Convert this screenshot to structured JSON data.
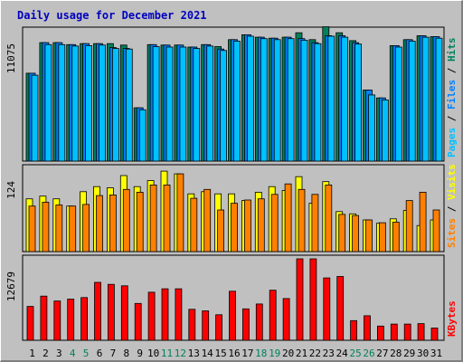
{
  "title": "Daily usage for December 2021",
  "colors": {
    "hits": "#00805c",
    "files": "#0080ff",
    "pages": "#00c0ff",
    "visits": "#ffff00",
    "sites": "#ff8000",
    "kbytes": "#ff0000",
    "weekend_day": "#00805c",
    "weekday": "#000000",
    "title": "#0000c0"
  },
  "chart_data": [
    {
      "type": "bar",
      "y_tick_label": "11075",
      "ylim": [
        0,
        13200
      ],
      "categories": [
        "1",
        "2",
        "3",
        "4",
        "5",
        "6",
        "7",
        "8",
        "9",
        "10",
        "11",
        "12",
        "13",
        "14",
        "15",
        "16",
        "17",
        "18",
        "19",
        "20",
        "21",
        "22",
        "23",
        "24",
        "25",
        "26",
        "27",
        "28",
        "29",
        "30",
        "31"
      ],
      "weekend_days": [
        "4",
        "5",
        "11",
        "12",
        "18",
        "19",
        "25",
        "26"
      ],
      "side_labels": [
        {
          "text": "Pages",
          "color": "#00c0ff"
        },
        {
          "text": " / ",
          "color": "#000000"
        },
        {
          "text": "Files",
          "color": "#0080ff"
        },
        {
          "text": " / ",
          "color": "#000000"
        },
        {
          "text": "Hits",
          "color": "#00805c"
        }
      ],
      "series": [
        {
          "name": "Hits",
          "color": "#00805c",
          "values": [
            8900,
            12000,
            12000,
            11800,
            11900,
            11900,
            11900,
            11750,
            5400,
            11800,
            11750,
            11750,
            11550,
            11800,
            11600,
            12300,
            12800,
            12550,
            12450,
            12550,
            13000,
            12300,
            13600,
            13000,
            12200,
            7200,
            6400,
            11700,
            12300,
            12700,
            12600
          ]
        },
        {
          "name": "Files",
          "color": "#0080ff",
          "values": [
            8900,
            12000,
            12000,
            11800,
            11900,
            11900,
            11500,
            11400,
            5400,
            11800,
            11750,
            11750,
            11550,
            11800,
            11350,
            12300,
            12800,
            12550,
            12450,
            12550,
            12400,
            12000,
            12700,
            12700,
            12000,
            7200,
            6400,
            11700,
            12300,
            12700,
            12600
          ]
        },
        {
          "name": "Pages",
          "color": "#00c0ff",
          "values": [
            8700,
            11800,
            11800,
            11650,
            11700,
            11750,
            11400,
            11350,
            5200,
            11600,
            11550,
            11550,
            11400,
            11650,
            11200,
            12150,
            12650,
            12400,
            12300,
            12400,
            12250,
            11900,
            12650,
            12550,
            11850,
            6700,
            6200,
            11550,
            12150,
            12550,
            12450
          ]
        }
      ]
    },
    {
      "type": "bar",
      "y_tick_label": "124",
      "ylim": [
        0,
        150
      ],
      "side_labels": [
        {
          "text": "Sites",
          "color": "#ff8000"
        },
        {
          "text": " / ",
          "color": "#000000"
        },
        {
          "text": "Visits",
          "color": "#ffff00"
        }
      ],
      "series": [
        {
          "name": "Visits",
          "color": "#ffff00",
          "values": [
            95,
            100,
            95,
            82,
            108,
            117,
            115,
            137,
            117,
            128,
            145,
            140,
            104,
            108,
            104,
            104,
            92,
            107,
            117,
            110,
            135,
            87,
            126,
            72,
            68,
            57,
            51,
            59,
            74,
            47,
            57
          ]
        },
        {
          "name": "Sites",
          "color": "#ff8000",
          "values": [
            82,
            89,
            84,
            82,
            85,
            101,
            102,
            112,
            107,
            120,
            120,
            140,
            96,
            112,
            75,
            87,
            93,
            95,
            103,
            122,
            112,
            103,
            120,
            67,
            65,
            57,
            52,
            53,
            92,
            107,
            75
          ]
        }
      ]
    },
    {
      "type": "bar",
      "y_tick_label": "12679",
      "ylim": [
        0,
        16600
      ],
      "side_labels": [
        {
          "text": "KBytes",
          "color": "#ff0000"
        }
      ],
      "series": [
        {
          "name": "KBytes",
          "color": "#ff0000",
          "values": [
            6900,
            9000,
            8000,
            8400,
            8700,
            11800,
            11400,
            11100,
            7500,
            9800,
            10500,
            10500,
            6300,
            6000,
            5200,
            10000,
            6400,
            7400,
            10200,
            8500,
            16600,
            16600,
            12700,
            13000,
            4000,
            5000,
            2900,
            3300,
            3300,
            3400,
            2500
          ]
        }
      ]
    }
  ]
}
